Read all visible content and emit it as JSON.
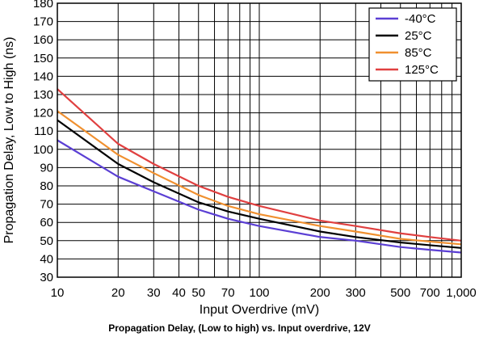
{
  "caption": "Propagation Delay, (Low to high) vs. Input overdrive, 12V",
  "chart_data": {
    "type": "line",
    "title": "",
    "xlabel": "Input Overdrive (mV)",
    "ylabel": "Propagation Delay, Low to High (ns)",
    "xscale": "log",
    "xlim": [
      10,
      1000
    ],
    "ylim": [
      30,
      180
    ],
    "x_ticks": [
      10,
      20,
      30,
      40,
      50,
      70,
      100,
      200,
      300,
      500,
      700,
      1000
    ],
    "x_tick_labels": [
      "10",
      "20",
      "30",
      "40",
      "50",
      "70",
      "100",
      "200",
      "300",
      "500",
      "700",
      "1,000"
    ],
    "y_ticks": [
      30,
      40,
      50,
      60,
      70,
      80,
      90,
      100,
      110,
      120,
      130,
      140,
      150,
      160,
      170,
      180
    ],
    "y_tick_labels": [
      "30",
      "40",
      "50",
      "60",
      "70",
      "80",
      "90",
      "100",
      "110",
      "120",
      "130",
      "140",
      "150",
      "160",
      "170",
      "180"
    ],
    "grid": true,
    "legend_position": "top-right",
    "series": [
      {
        "name": "-40°C",
        "color": "#5b3fd4",
        "x": [
          10,
          20,
          30,
          50,
          70,
          100,
          200,
          300,
          500,
          700,
          1000
        ],
        "y": [
          105,
          85,
          77,
          67,
          62,
          58,
          52,
          50,
          46.5,
          45,
          43.5
        ]
      },
      {
        "name": "25°C",
        "color": "#000000",
        "x": [
          10,
          20,
          30,
          50,
          70,
          100,
          200,
          300,
          500,
          700,
          1000
        ],
        "y": [
          116,
          92,
          82,
          71,
          66,
          62,
          55,
          52,
          49,
          47.5,
          46
        ]
      },
      {
        "name": "85°C",
        "color": "#f0902f",
        "x": [
          10,
          20,
          30,
          50,
          70,
          100,
          200,
          300,
          500,
          700,
          1000
        ],
        "y": [
          121,
          97,
          87,
          75,
          69,
          64.5,
          58,
          55,
          51,
          49.5,
          48
        ]
      },
      {
        "name": "125°C",
        "color": "#e04040",
        "x": [
          10,
          20,
          30,
          50,
          70,
          100,
          200,
          300,
          500,
          700,
          1000
        ],
        "y": [
          133,
          103,
          92,
          80,
          74,
          69,
          61,
          58,
          54,
          52,
          50
        ]
      }
    ]
  }
}
